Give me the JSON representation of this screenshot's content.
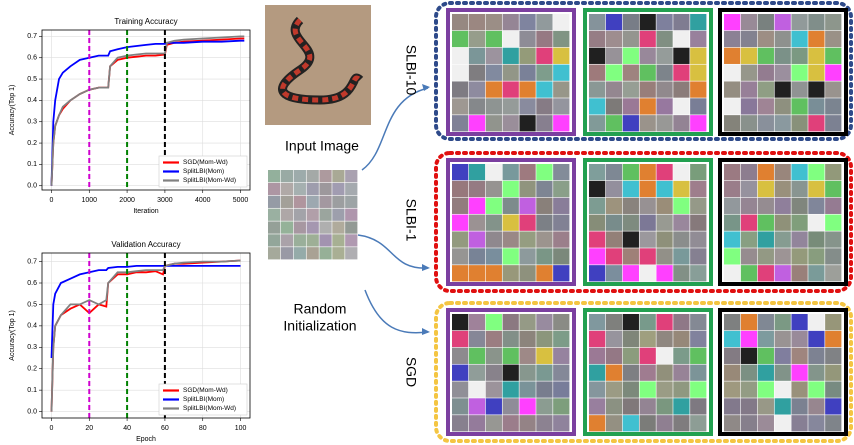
{
  "chart_data": [
    {
      "type": "line",
      "title": "Training Accuracy",
      "x_label": "Iteration",
      "y_label": "Accuracy(Top 1)",
      "x": [
        0,
        50,
        100,
        200,
        300,
        500,
        750,
        1000,
        1250,
        1500,
        1550,
        1750,
        2000,
        2250,
        2500,
        2750,
        3000,
        3050,
        3250,
        3500,
        4000,
        4500,
        5000,
        5100
      ],
      "series": [
        {
          "name": "SGD(Mom-Wd)",
          "color": "#ff0000",
          "values": [
            0,
            0.2,
            0.28,
            0.33,
            0.36,
            0.4,
            0.43,
            0.45,
            0.46,
            0.46,
            0.56,
            0.59,
            0.6,
            0.605,
            0.61,
            0.61,
            0.615,
            0.66,
            0.67,
            0.675,
            0.68,
            0.685,
            0.69,
            0.69
          ]
        },
        {
          "name": "SplitLBI(Mom)",
          "color": "#0000ff",
          "values": [
            0,
            0.3,
            0.4,
            0.5,
            0.53,
            0.56,
            0.59,
            0.6,
            0.61,
            0.61,
            0.63,
            0.64,
            0.65,
            0.655,
            0.66,
            0.665,
            0.665,
            0.67,
            0.67,
            0.67,
            0.675,
            0.675,
            0.68,
            0.68
          ]
        },
        {
          "name": "SplitLBI(Mom-Wd)",
          "color": "#808080",
          "values": [
            0,
            0.2,
            0.28,
            0.33,
            0.37,
            0.4,
            0.43,
            0.45,
            0.46,
            0.46,
            0.56,
            0.6,
            0.61,
            0.615,
            0.62,
            0.62,
            0.62,
            0.67,
            0.68,
            0.685,
            0.69,
            0.695,
            0.7,
            0.7
          ]
        }
      ],
      "xlim": [
        -250,
        5250
      ],
      "xticks": [
        0,
        1000,
        2000,
        3000,
        4000,
        5000
      ],
      "ylim": [
        -0.02,
        0.73
      ],
      "yticks": [
        {
          "value": 0,
          "label": "0.0"
        },
        0.1,
        0.2,
        0.3,
        0.4,
        0.5,
        0.6,
        0.7
      ],
      "vlines": [
        {
          "x": 1000,
          "color": "#d000d0"
        },
        {
          "x": 2000,
          "color": "#008000"
        },
        {
          "x": 3000,
          "color": "#000000"
        }
      ],
      "grid": true,
      "legend": "lower right"
    },
    {
      "type": "line",
      "title": "Validation Accuracy",
      "x_label": "Epoch",
      "y_label": "Accuracy(Top 1)",
      "x": [
        0,
        1,
        2,
        5,
        10,
        15,
        20,
        25,
        29,
        30,
        35,
        40,
        45,
        50,
        55,
        59,
        60,
        65,
        70,
        80,
        90,
        100
      ],
      "series": [
        {
          "name": "SGD(Mom-Wd)",
          "color": "#ff0000",
          "values": [
            0,
            0.3,
            0.4,
            0.45,
            0.48,
            0.5,
            0.46,
            0.5,
            0.49,
            0.6,
            0.64,
            0.64,
            0.65,
            0.65,
            0.655,
            0.64,
            0.68,
            0.69,
            0.69,
            0.695,
            0.7,
            0.705
          ]
        },
        {
          "name": "SplitLBI(Mom)",
          "color": "#0000ff",
          "values": [
            0.25,
            0.5,
            0.55,
            0.6,
            0.62,
            0.64,
            0.65,
            0.66,
            0.66,
            0.67,
            0.675,
            0.675,
            0.68,
            0.68,
            0.68,
            0.68,
            0.68,
            0.68,
            0.68,
            0.68,
            0.68,
            0.68
          ]
        },
        {
          "name": "SplitLBI(Mom-Wd)",
          "color": "#808080",
          "values": [
            0,
            0.3,
            0.4,
            0.45,
            0.5,
            0.5,
            0.52,
            0.5,
            0.52,
            0.6,
            0.65,
            0.65,
            0.655,
            0.66,
            0.66,
            0.66,
            0.68,
            0.69,
            0.695,
            0.7,
            0.7,
            0.705
          ]
        }
      ],
      "xlim": [
        -5,
        105
      ],
      "xticks": [
        0,
        20,
        40,
        60,
        80,
        100
      ],
      "ylim": [
        -0.03,
        0.74
      ],
      "yticks": [
        {
          "value": 0,
          "label": "0.0"
        },
        0.1,
        0.2,
        0.3,
        0.4,
        0.5,
        0.6,
        0.7
      ],
      "vlines": [
        {
          "x": 20,
          "color": "#d000d0"
        },
        {
          "x": 40,
          "color": "#008000"
        },
        {
          "x": 60,
          "color": "#000000"
        }
      ],
      "grid": true,
      "legend": "lower right"
    }
  ],
  "figure": {
    "input_image_label": "Input Image",
    "random_init_label": [
      "Random",
      "Initialization"
    ],
    "rows": [
      {
        "label": "SLBI-10"
      },
      {
        "label": "SLBI-1"
      },
      {
        "label": "SGD"
      }
    ]
  }
}
